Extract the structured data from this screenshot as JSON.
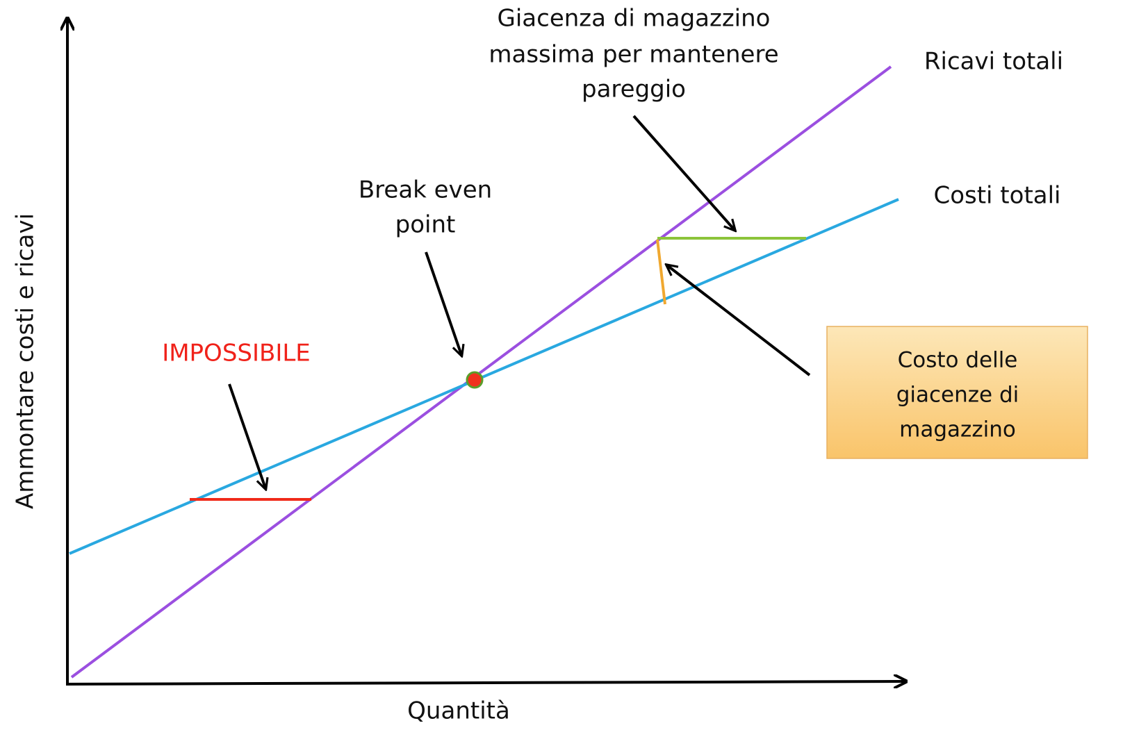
{
  "diagram": {
    "axes": {
      "y_label": "Ammontare costi e ricavi",
      "x_label": "Quantità"
    },
    "curves": {
      "revenue": "Ricavi totali",
      "costs": "Costi totali"
    },
    "annotations": {
      "max_stock": [
        "Giacenza di magazzino",
        "massima per mantenere",
        "pareggio"
      ],
      "break_even": [
        "Break even",
        "point"
      ],
      "impossible": "IMPOSSIBILE"
    },
    "box": [
      "Costo delle",
      "giacenze di",
      "magazzino"
    ]
  }
}
